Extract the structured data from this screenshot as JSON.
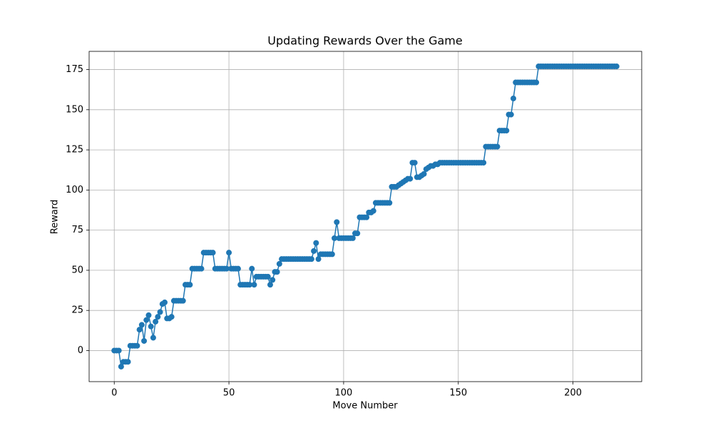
{
  "chart_data": {
    "type": "line",
    "title": "Updating Rewards Over the Game",
    "x_label": "Move Number",
    "y_label": "Reward",
    "x": [
      0,
      1,
      2,
      3,
      4,
      5,
      6,
      7,
      8,
      9,
      10,
      11,
      12,
      13,
      14,
      15,
      16,
      17,
      18,
      19,
      20,
      21,
      22,
      23,
      24,
      25,
      26,
      27,
      28,
      29,
      30,
      31,
      32,
      33,
      34,
      35,
      36,
      37,
      38,
      39,
      40,
      41,
      42,
      43,
      44,
      45,
      46,
      47,
      48,
      49,
      50,
      51,
      52,
      53,
      54,
      55,
      56,
      57,
      58,
      59,
      60,
      61,
      62,
      63,
      64,
      65,
      66,
      67,
      68,
      69,
      70,
      71,
      72,
      73,
      74,
      75,
      76,
      77,
      78,
      79,
      80,
      81,
      82,
      83,
      84,
      85,
      86,
      87,
      88,
      89,
      90,
      91,
      92,
      93,
      94,
      95,
      96,
      97,
      98,
      99,
      100,
      101,
      102,
      103,
      104,
      105,
      106,
      107,
      108,
      109,
      110,
      111,
      112,
      113,
      114,
      115,
      116,
      117,
      118,
      119,
      120,
      121,
      122,
      123,
      124,
      125,
      126,
      127,
      128,
      129,
      130,
      131,
      132,
      133,
      134,
      135,
      136,
      137,
      138,
      139,
      140,
      141,
      142,
      143,
      144,
      145,
      146,
      147,
      148,
      149,
      150,
      151,
      152,
      153,
      154,
      155,
      156,
      157,
      158,
      159,
      160,
      161,
      162,
      163,
      164,
      165,
      166,
      167,
      168,
      169,
      170,
      171,
      172,
      173,
      174,
      175,
      176,
      177,
      178,
      179,
      180,
      181,
      182,
      183,
      184,
      185,
      186,
      187,
      188,
      189,
      190,
      191,
      192,
      193,
      194,
      195,
      196,
      197,
      198,
      199,
      200,
      201,
      202,
      203,
      204,
      205,
      206,
      207,
      208,
      209,
      210,
      211,
      212,
      213,
      214,
      215,
      216,
      217,
      218,
      219
    ],
    "series": [
      {
        "color": "#1f77b4",
        "values": [
          0,
          0,
          0,
          -10,
          -7,
          -7,
          -7,
          3,
          3,
          3,
          3,
          13,
          16,
          6,
          19,
          22,
          15,
          8,
          18,
          21,
          24,
          29,
          30,
          20,
          20,
          21,
          31,
          31,
          31,
          31,
          31,
          41,
          41,
          41,
          51,
          51,
          51,
          51,
          51,
          61,
          61,
          61,
          61,
          61,
          51,
          51,
          51,
          51,
          51,
          51,
          61,
          51,
          51,
          51,
          51,
          41,
          41,
          41,
          41,
          41,
          51,
          41,
          46,
          46,
          46,
          46,
          46,
          46,
          41,
          44,
          49,
          49,
          54,
          57,
          57,
          57,
          57,
          57,
          57,
          57,
          57,
          57,
          57,
          57,
          57,
          57,
          57,
          62,
          67,
          57,
          60,
          60,
          60,
          60,
          60,
          60,
          70,
          80,
          70,
          70,
          70,
          70,
          70,
          70,
          70,
          73,
          73,
          83,
          83,
          83,
          83,
          86,
          86,
          87,
          92,
          92,
          92,
          92,
          92,
          92,
          92,
          102,
          102,
          102,
          103,
          104,
          105,
          106,
          107,
          107,
          117,
          117,
          108,
          108,
          109,
          110,
          113,
          114,
          115,
          115,
          116,
          116,
          117,
          117,
          117,
          117,
          117,
          117,
          117,
          117,
          117,
          117,
          117,
          117,
          117,
          117,
          117,
          117,
          117,
          117,
          117,
          117,
          127,
          127,
          127,
          127,
          127,
          127,
          137,
          137,
          137,
          137,
          147,
          147,
          157,
          167,
          167,
          167,
          167,
          167,
          167,
          167,
          167,
          167,
          167,
          177,
          177,
          177,
          177,
          177,
          177,
          177,
          177,
          177,
          177,
          177,
          177,
          177,
          177,
          177,
          177,
          177,
          177,
          177,
          177,
          177,
          177,
          177,
          177,
          177,
          177,
          177,
          177,
          177,
          177,
          177,
          177,
          177,
          177,
          177
        ]
      }
    ],
    "xlim": [
      -10.95,
      229.95
    ],
    "ylim": [
      -19.35,
      186.35
    ],
    "xticks": [
      0,
      50,
      100,
      150,
      200
    ],
    "yticks": [
      0,
      25,
      50,
      75,
      100,
      125,
      150,
      175
    ],
    "grid": true
  }
}
